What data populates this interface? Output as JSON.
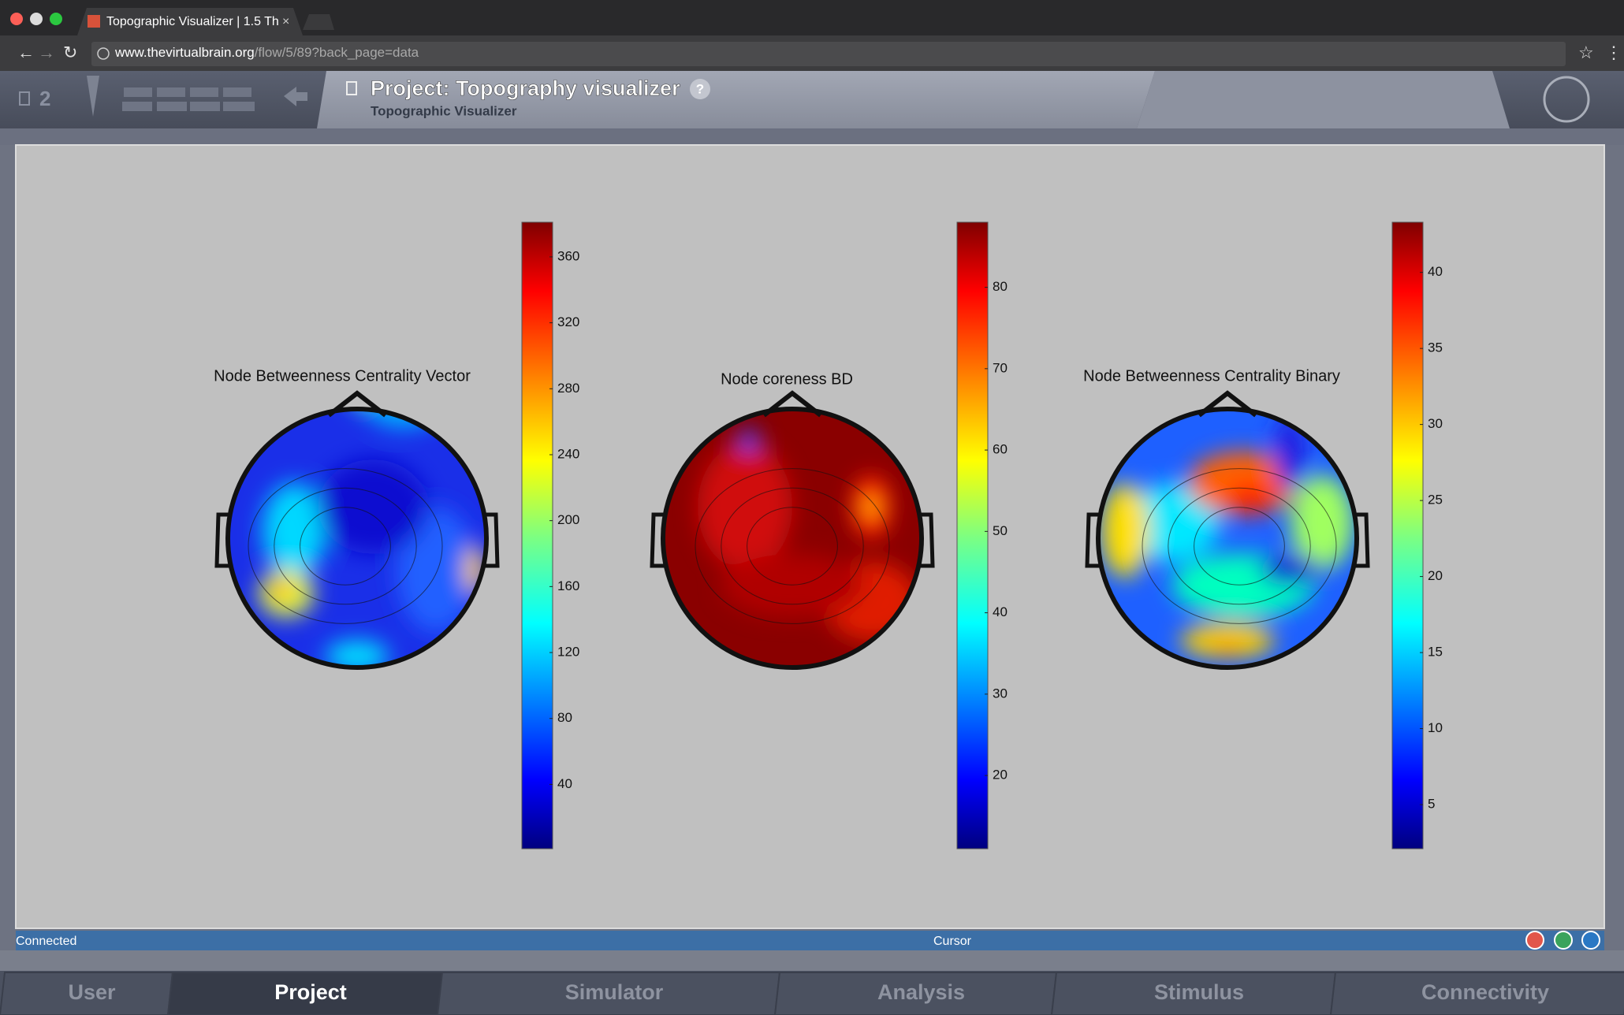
{
  "browser": {
    "tab_title": "Topographic Visualizer | 1.5 Th",
    "url_host": "www.thevirtualbrain.org",
    "url_path": "/flow/5/89?back_page=data"
  },
  "header": {
    "project_count": "2",
    "title": "Project: Topography visualizer",
    "help": "?",
    "subtitle": "Topographic Visualizer"
  },
  "chart_data": [
    {
      "type": "topomap",
      "title": "Node Betweenness Centrality Vector",
      "colormap": "jet",
      "field": "blue",
      "ylim": [
        1,
        381
      ],
      "yticks": [
        40,
        80,
        120,
        160,
        200,
        240,
        280,
        320,
        360
      ]
    },
    {
      "type": "topomap",
      "title": "Node coreness BD",
      "colormap": "jet",
      "field": "red",
      "ylim": [
        11,
        88
      ],
      "yticks": [
        20,
        30,
        40,
        50,
        60,
        70,
        80
      ]
    },
    {
      "type": "topomap",
      "title": "Node Betweenness Centrality Binary",
      "colormap": "jet",
      "field": "mixed",
      "ylim": [
        2.1,
        43.3
      ],
      "yticks": [
        5,
        10,
        15,
        20,
        25,
        30,
        35,
        40
      ]
    }
  ],
  "status_bar": {
    "left": "Connected",
    "center": "Cursor"
  },
  "nav": [
    {
      "label": "User"
    },
    {
      "label": "Project",
      "active": true
    },
    {
      "label": "Simulator"
    },
    {
      "label": "Analysis"
    },
    {
      "label": "Stimulus"
    },
    {
      "label": "Connectivity"
    }
  ]
}
